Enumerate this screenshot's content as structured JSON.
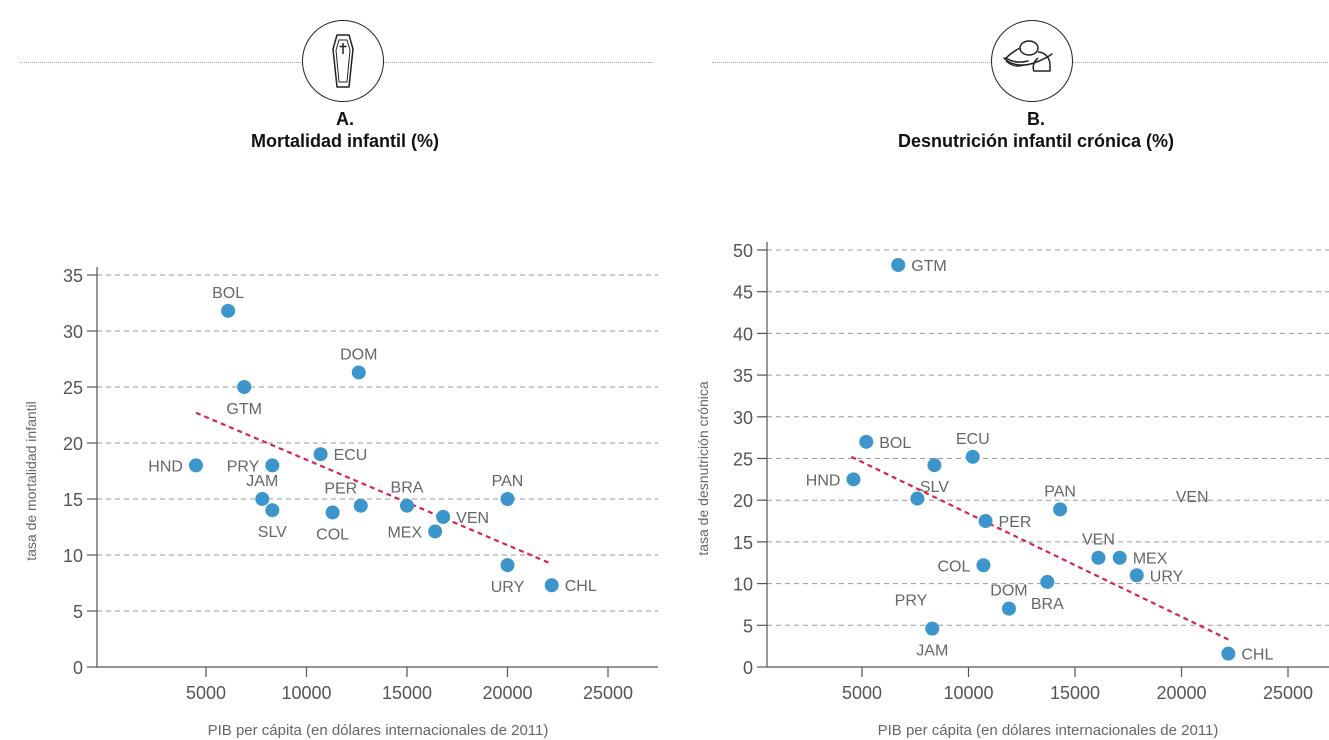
{
  "chart_data": [
    {
      "type": "scatter",
      "panel_letter": "A.",
      "title": "Mortalidad infantil (%)",
      "icon": "coffin-icon",
      "xlabel": "PIB per cápita (en dólares internacionales de 2011)",
      "ylabel": "tasa de mortalidad infantil",
      "xlim": [
        0,
        27500
      ],
      "ylim": [
        0,
        37
      ],
      "xticks": [
        5000,
        10000,
        15000,
        20000,
        25000
      ],
      "yticks": [
        0,
        5,
        10,
        15,
        20,
        25,
        30,
        35
      ],
      "grid": true,
      "point_color": "#3d96cb",
      "trend_color": "#d8244f",
      "trendline": {
        "x": [
          4500,
          22200
        ],
        "y": [
          22.7,
          9.2
        ]
      },
      "points": [
        {
          "label": "BOL",
          "x": 6100,
          "y": 31.8,
          "pos": "top"
        },
        {
          "label": "DOM",
          "x": 12600,
          "y": 26.3,
          "pos": "top"
        },
        {
          "label": "GTM",
          "x": 6900,
          "y": 25.0,
          "pos": "bottom"
        },
        {
          "label": "ECU",
          "x": 10700,
          "y": 19.0,
          "pos": "right"
        },
        {
          "label": "HND",
          "x": 4500,
          "y": 18.0,
          "pos": "left"
        },
        {
          "label": "PRY",
          "x": 8300,
          "y": 18.0,
          "pos": "left"
        },
        {
          "label": "JAM",
          "x": 7800,
          "y": 15.0,
          "pos": "top"
        },
        {
          "label": "SLV",
          "x": 8300,
          "y": 14.0,
          "pos": "bottom"
        },
        {
          "label": "PER",
          "x": 12700,
          "y": 14.4,
          "pos": "topleft"
        },
        {
          "label": "COL",
          "x": 11300,
          "y": 13.8,
          "pos": "bottom"
        },
        {
          "label": "BRA",
          "x": 15000,
          "y": 14.4,
          "pos": "top"
        },
        {
          "label": "VEN",
          "x": 16800,
          "y": 13.4,
          "pos": "right"
        },
        {
          "label": "MEX",
          "x": 16400,
          "y": 12.1,
          "pos": "left"
        },
        {
          "label": "PAN",
          "x": 20000,
          "y": 15.0,
          "pos": "top"
        },
        {
          "label": "URY",
          "x": 20000,
          "y": 9.1,
          "pos": "bottom"
        },
        {
          "label": "CHL",
          "x": 22200,
          "y": 7.3,
          "pos": "right"
        }
      ]
    },
    {
      "type": "scatter",
      "panel_letter": "B.",
      "title": "Desnutrición infantil crónica (%)",
      "icon": "malnourished-child-icon",
      "xlabel": "PIB per cápita (en dólares internacionales de 2011)",
      "ylabel": "tasa de desnutrición crónica",
      "xlim": [
        0,
        27500
      ],
      "ylim": [
        0,
        50
      ],
      "xticks": [
        5000,
        10000,
        15000,
        20000,
        25000
      ],
      "yticks": [
        0,
        5,
        10,
        15,
        20,
        25,
        30,
        35,
        40,
        45,
        50
      ],
      "grid": true,
      "point_color": "#3d96cb",
      "trend_color": "#d8244f",
      "trendline": {
        "x": [
          4500,
          22200
        ],
        "y": [
          25.2,
          3.3
        ]
      },
      "points": [
        {
          "label": "GTM",
          "x": 6700,
          "y": 48.2,
          "pos": "right"
        },
        {
          "label": "BOL",
          "x": 5200,
          "y": 27.0,
          "pos": "right"
        },
        {
          "label": "ECU",
          "x": 10200,
          "y": 25.2,
          "pos": "top"
        },
        {
          "label": "SLV",
          "x": 8400,
          "y": 24.2,
          "pos": "bottom"
        },
        {
          "label": "HND",
          "x": 4600,
          "y": 22.5,
          "pos": "left"
        },
        {
          "label": "PRY",
          "x": 7600,
          "y": 20.2,
          "pos": "none"
        },
        {
          "label": "PAN",
          "x": 14300,
          "y": 18.9,
          "pos": "top"
        },
        {
          "label": "PER",
          "x": 10800,
          "y": 17.5,
          "pos": "right"
        },
        {
          "label": "VEN",
          "x": 16100,
          "y": 13.1,
          "pos": "top"
        },
        {
          "label": "MEX",
          "x": 17100,
          "y": 13.1,
          "pos": "right"
        },
        {
          "label": "COL",
          "x": 10700,
          "y": 12.2,
          "pos": "left"
        },
        {
          "label": "URY",
          "x": 17900,
          "y": 11.0,
          "pos": "right"
        },
        {
          "label": "PRY",
          "x": 7300,
          "y": 10.6,
          "pos": "bottom",
          "marker": false
        },
        {
          "label": "BRA",
          "x": 13700,
          "y": 10.2,
          "pos": "bottom"
        },
        {
          "label": "DOM",
          "x": 11900,
          "y": 7.0,
          "pos": "top"
        },
        {
          "label": "JAM",
          "x": 8300,
          "y": 4.6,
          "pos": "bottom"
        },
        {
          "label": "CHL",
          "x": 22200,
          "y": 1.6,
          "pos": "right"
        }
      ],
      "floating_labels": [
        {
          "label": "VEN",
          "x": 20500,
          "y": 19.8
        }
      ]
    }
  ]
}
